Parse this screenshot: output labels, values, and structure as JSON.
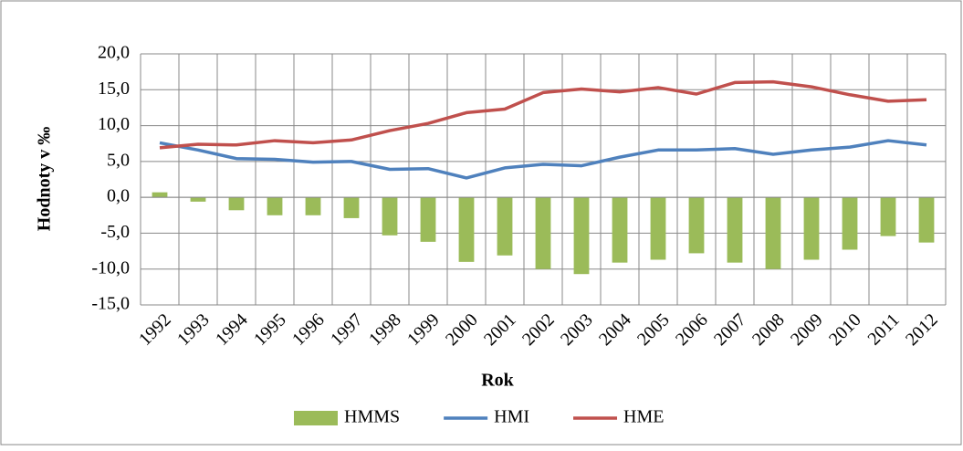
{
  "chart_data": {
    "type": "bar",
    "x_label": "Rok",
    "y_label": "Hodnoty v ‰",
    "categories": [
      "1992",
      "1993",
      "1994",
      "1995",
      "1996",
      "1997",
      "1998",
      "1999",
      "2000",
      "2001",
      "2002",
      "2003",
      "2004",
      "2005",
      "2006",
      "2007",
      "2008",
      "2009",
      "2010",
      "2011",
      "2012"
    ],
    "series": [
      {
        "name": "HMMS",
        "type": "bar",
        "color": "#9bbb59",
        "values": [
          0.7,
          -0.6,
          -1.8,
          -2.5,
          -2.5,
          -2.9,
          -5.3,
          -6.2,
          -9.0,
          -8.1,
          -10.0,
          -10.7,
          -9.1,
          -8.7,
          -7.8,
          -9.1,
          -10.0,
          -8.7,
          -7.3,
          -5.4,
          -6.3
        ]
      },
      {
        "name": "HMI",
        "type": "line",
        "color": "#4f81bd",
        "values": [
          7.6,
          6.6,
          5.4,
          5.3,
          4.9,
          5.0,
          3.9,
          4.0,
          2.7,
          4.1,
          4.6,
          4.4,
          5.6,
          6.6,
          6.6,
          6.8,
          6.0,
          6.6,
          7.0,
          7.9,
          7.3
        ]
      },
      {
        "name": "HME",
        "type": "line",
        "color": "#c0504d",
        "values": [
          6.9,
          7.4,
          7.3,
          7.9,
          7.6,
          8.0,
          9.3,
          10.3,
          11.8,
          12.3,
          14.6,
          15.1,
          14.7,
          15.3,
          14.4,
          16.0,
          16.1,
          15.4,
          14.3,
          13.4,
          13.6
        ]
      }
    ],
    "ylim": [
      -15,
      20
    ],
    "yticks": [
      {
        "value": -15,
        "label": "-15,0"
      },
      {
        "value": -10,
        "label": "-10,0"
      },
      {
        "value": -5,
        "label": "-5,0"
      },
      {
        "value": 0,
        "label": "0,0"
      },
      {
        "value": 5,
        "label": "5,0"
      },
      {
        "value": 10,
        "label": "10,0"
      },
      {
        "value": 15,
        "label": "15,0"
      },
      {
        "value": 20,
        "label": "20,0"
      }
    ],
    "grid": true,
    "legend": "bottom"
  }
}
